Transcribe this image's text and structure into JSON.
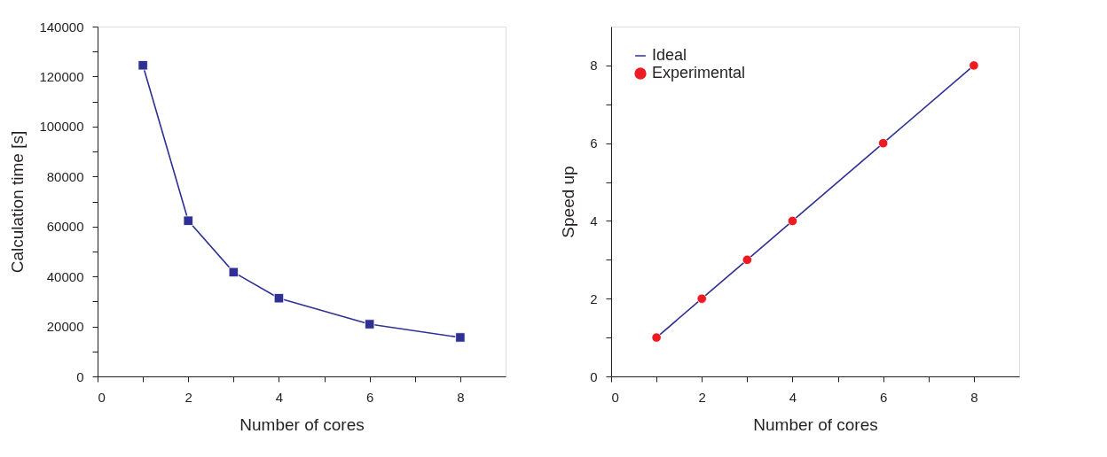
{
  "chart_data": [
    {
      "type": "line",
      "xlabel": "Number of cores",
      "ylabel": "Calculation time [s]",
      "x": [
        1,
        2,
        3,
        4,
        6,
        8
      ],
      "series": [
        {
          "color": "#2e3192",
          "values": [
            124500,
            62300,
            41700,
            31300,
            20900,
            15600
          ],
          "marker": "square"
        }
      ],
      "xlim": [
        0,
        9
      ],
      "xticks": [
        0,
        {
          "value": 1,
          "label": null
        },
        2,
        {
          "value": 3,
          "label": null
        },
        4,
        {
          "value": 5,
          "label": null
        },
        6,
        {
          "value": 7,
          "label": null
        },
        8
      ],
      "ylim": [
        0,
        140000
      ],
      "yticks": [
        0,
        {
          "value": 10000,
          "label": null
        },
        20000,
        {
          "value": 30000,
          "label": null
        },
        40000,
        {
          "value": 50000,
          "label": null
        },
        60000,
        {
          "value": 70000,
          "label": null
        },
        80000,
        {
          "value": 90000,
          "label": null
        },
        100000,
        {
          "value": 110000,
          "label": null
        },
        120000,
        {
          "value": 130000,
          "label": null
        },
        140000
      ],
      "grid": false,
      "legend": false
    },
    {
      "type": "line",
      "xlabel": "Number of cores",
      "ylabel": "Speed up",
      "x": [
        1,
        2,
        3,
        4,
        6,
        8
      ],
      "series": [
        {
          "name": "Ideal",
          "type": "line",
          "color": "#2e3192",
          "values": [
            1,
            2,
            3,
            4,
            6,
            8
          ],
          "marker": "none"
        },
        {
          "name": "Experimental",
          "type": "scatter",
          "color": "#ed1c24",
          "values": [
            1,
            2,
            3,
            4,
            6,
            8
          ],
          "marker": "circle"
        }
      ],
      "xlim": [
        0,
        9
      ],
      "xticks": [
        0,
        {
          "value": 1,
          "label": null
        },
        2,
        {
          "value": 3,
          "label": null
        },
        4,
        {
          "value": 5,
          "label": null
        },
        6,
        {
          "value": 7,
          "label": null
        },
        8
      ],
      "ylim": [
        0,
        9
      ],
      "yticks": [
        0,
        {
          "value": 1,
          "label": null
        },
        2,
        {
          "value": 3,
          "label": null
        },
        4,
        {
          "value": 5,
          "label": null
        },
        6,
        {
          "value": 7,
          "label": null
        },
        8
      ],
      "grid": false,
      "legend": "top left"
    }
  ]
}
